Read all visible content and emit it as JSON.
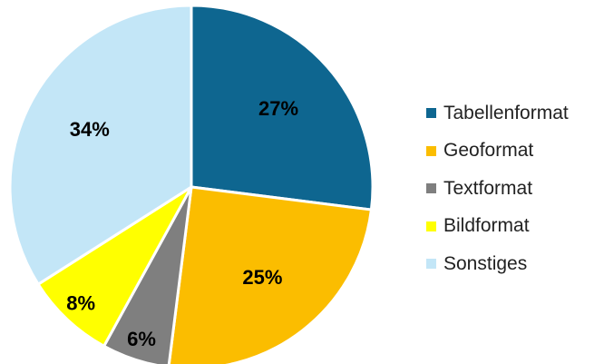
{
  "chart_data": {
    "type": "pie",
    "categories": [
      "Tabellenformat",
      "Geoformat",
      "Textformat",
      "Bildformat",
      "Sonstiges"
    ],
    "values": [
      27,
      25,
      6,
      8,
      34
    ],
    "labels": [
      "27%",
      "25%",
      "6%",
      "8%",
      "34%"
    ],
    "colors": [
      "#0e6690",
      "#fbbd00",
      "#7f7f7f",
      "#ffff00",
      "#c3e6f7"
    ],
    "legend_position": "right"
  }
}
